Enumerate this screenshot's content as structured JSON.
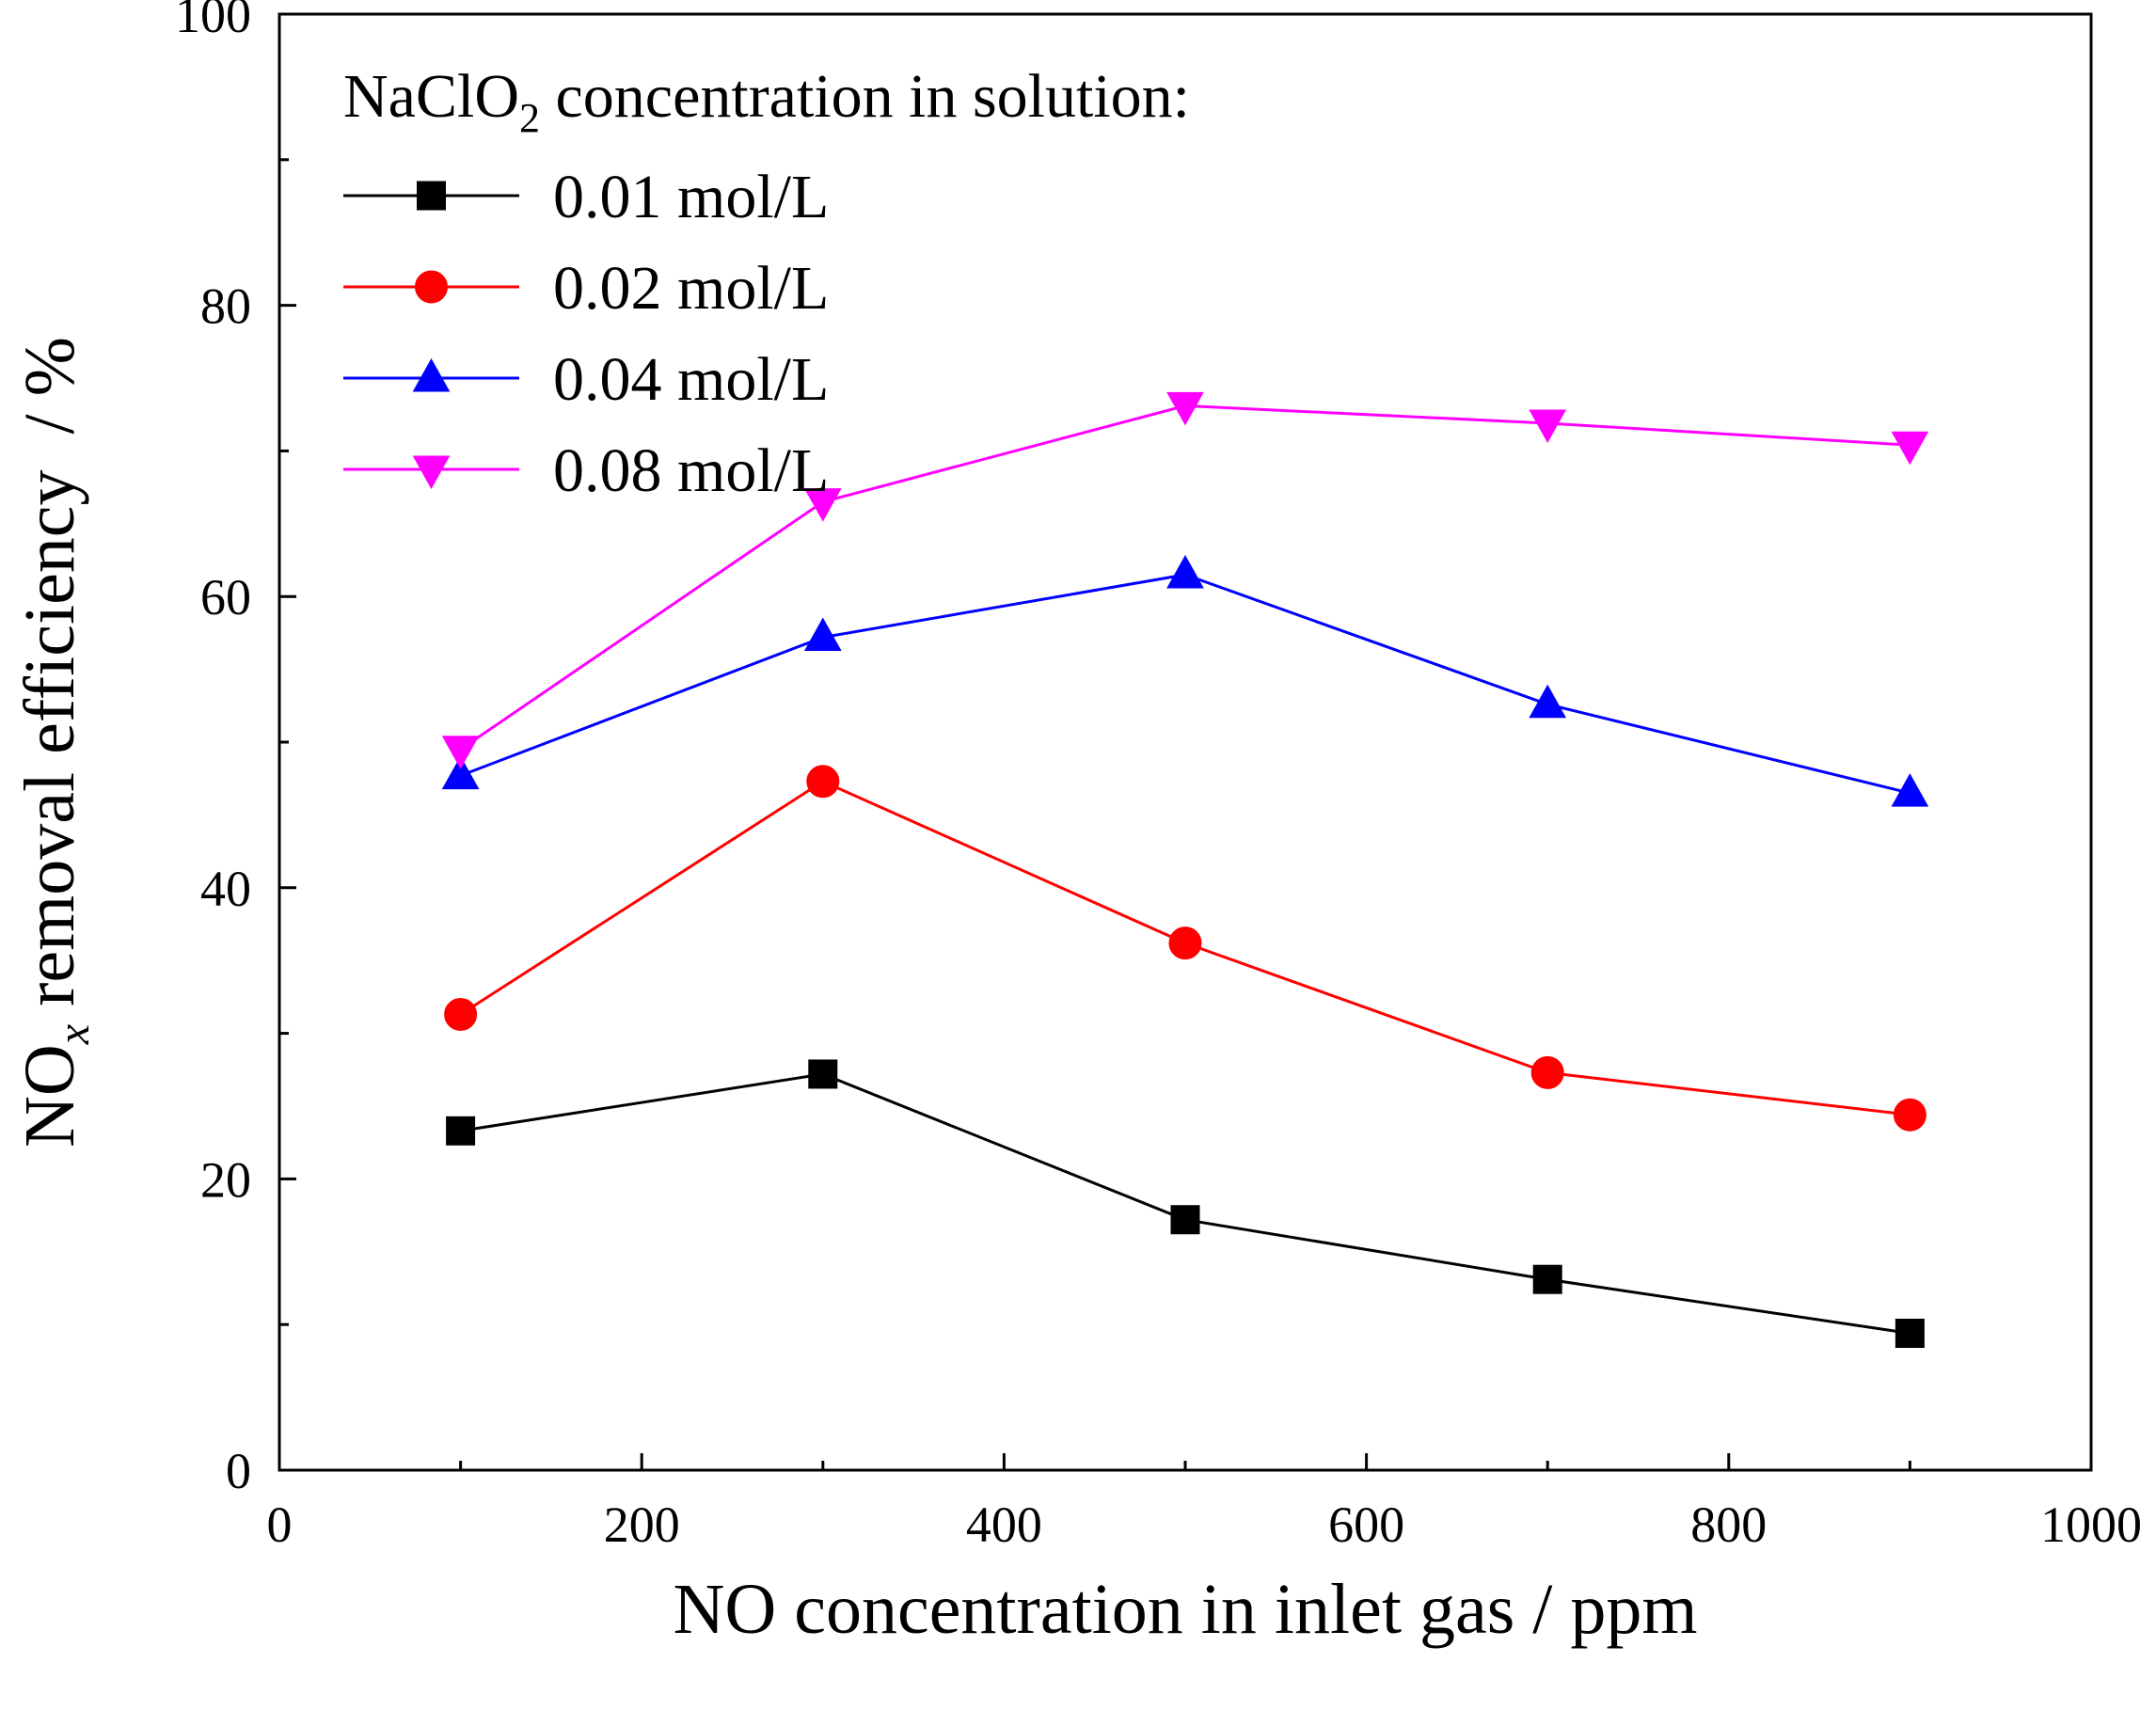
{
  "chart_data": {
    "type": "line",
    "xlabel": "NO concentration in inlet gas / ppm",
    "ylabel": {
      "prefix": "NO",
      "subscript": "x",
      "suffix": " removal efficiency  / %"
    },
    "xlim": [
      0,
      1000
    ],
    "ylim": [
      0,
      100
    ],
    "xticks": [
      0,
      200,
      400,
      600,
      800,
      1000
    ],
    "yticks": [
      0,
      20,
      40,
      60,
      80,
      100
    ],
    "x_minor_step": 100,
    "y_minor_step": 10,
    "grid": false,
    "legend": {
      "placement": "top-left",
      "title": {
        "prefix": "NaClO",
        "subscript": "2",
        "suffix": " concentration in solution:"
      }
    },
    "x": [
      100,
      300,
      500,
      700,
      900
    ],
    "series": [
      {
        "name": "0.01 mol/L",
        "color": "#000000",
        "marker": "square",
        "values": [
          23.3,
          27.2,
          17.2,
          13.1,
          9.4
        ]
      },
      {
        "name": "0.02 mol/L",
        "color": "#ff0000",
        "marker": "circle",
        "values": [
          31.3,
          47.3,
          36.2,
          27.3,
          24.4
        ]
      },
      {
        "name": "0.04 mol/L",
        "color": "#0000ff",
        "marker": "triangle-up",
        "values": [
          47.7,
          57.2,
          61.5,
          52.6,
          46.5
        ]
      },
      {
        "name": "0.08 mol/L",
        "color": "#ff00ff",
        "marker": "triangle-down",
        "values": [
          49.5,
          66.5,
          73.1,
          71.9,
          70.4
        ]
      }
    ]
  }
}
